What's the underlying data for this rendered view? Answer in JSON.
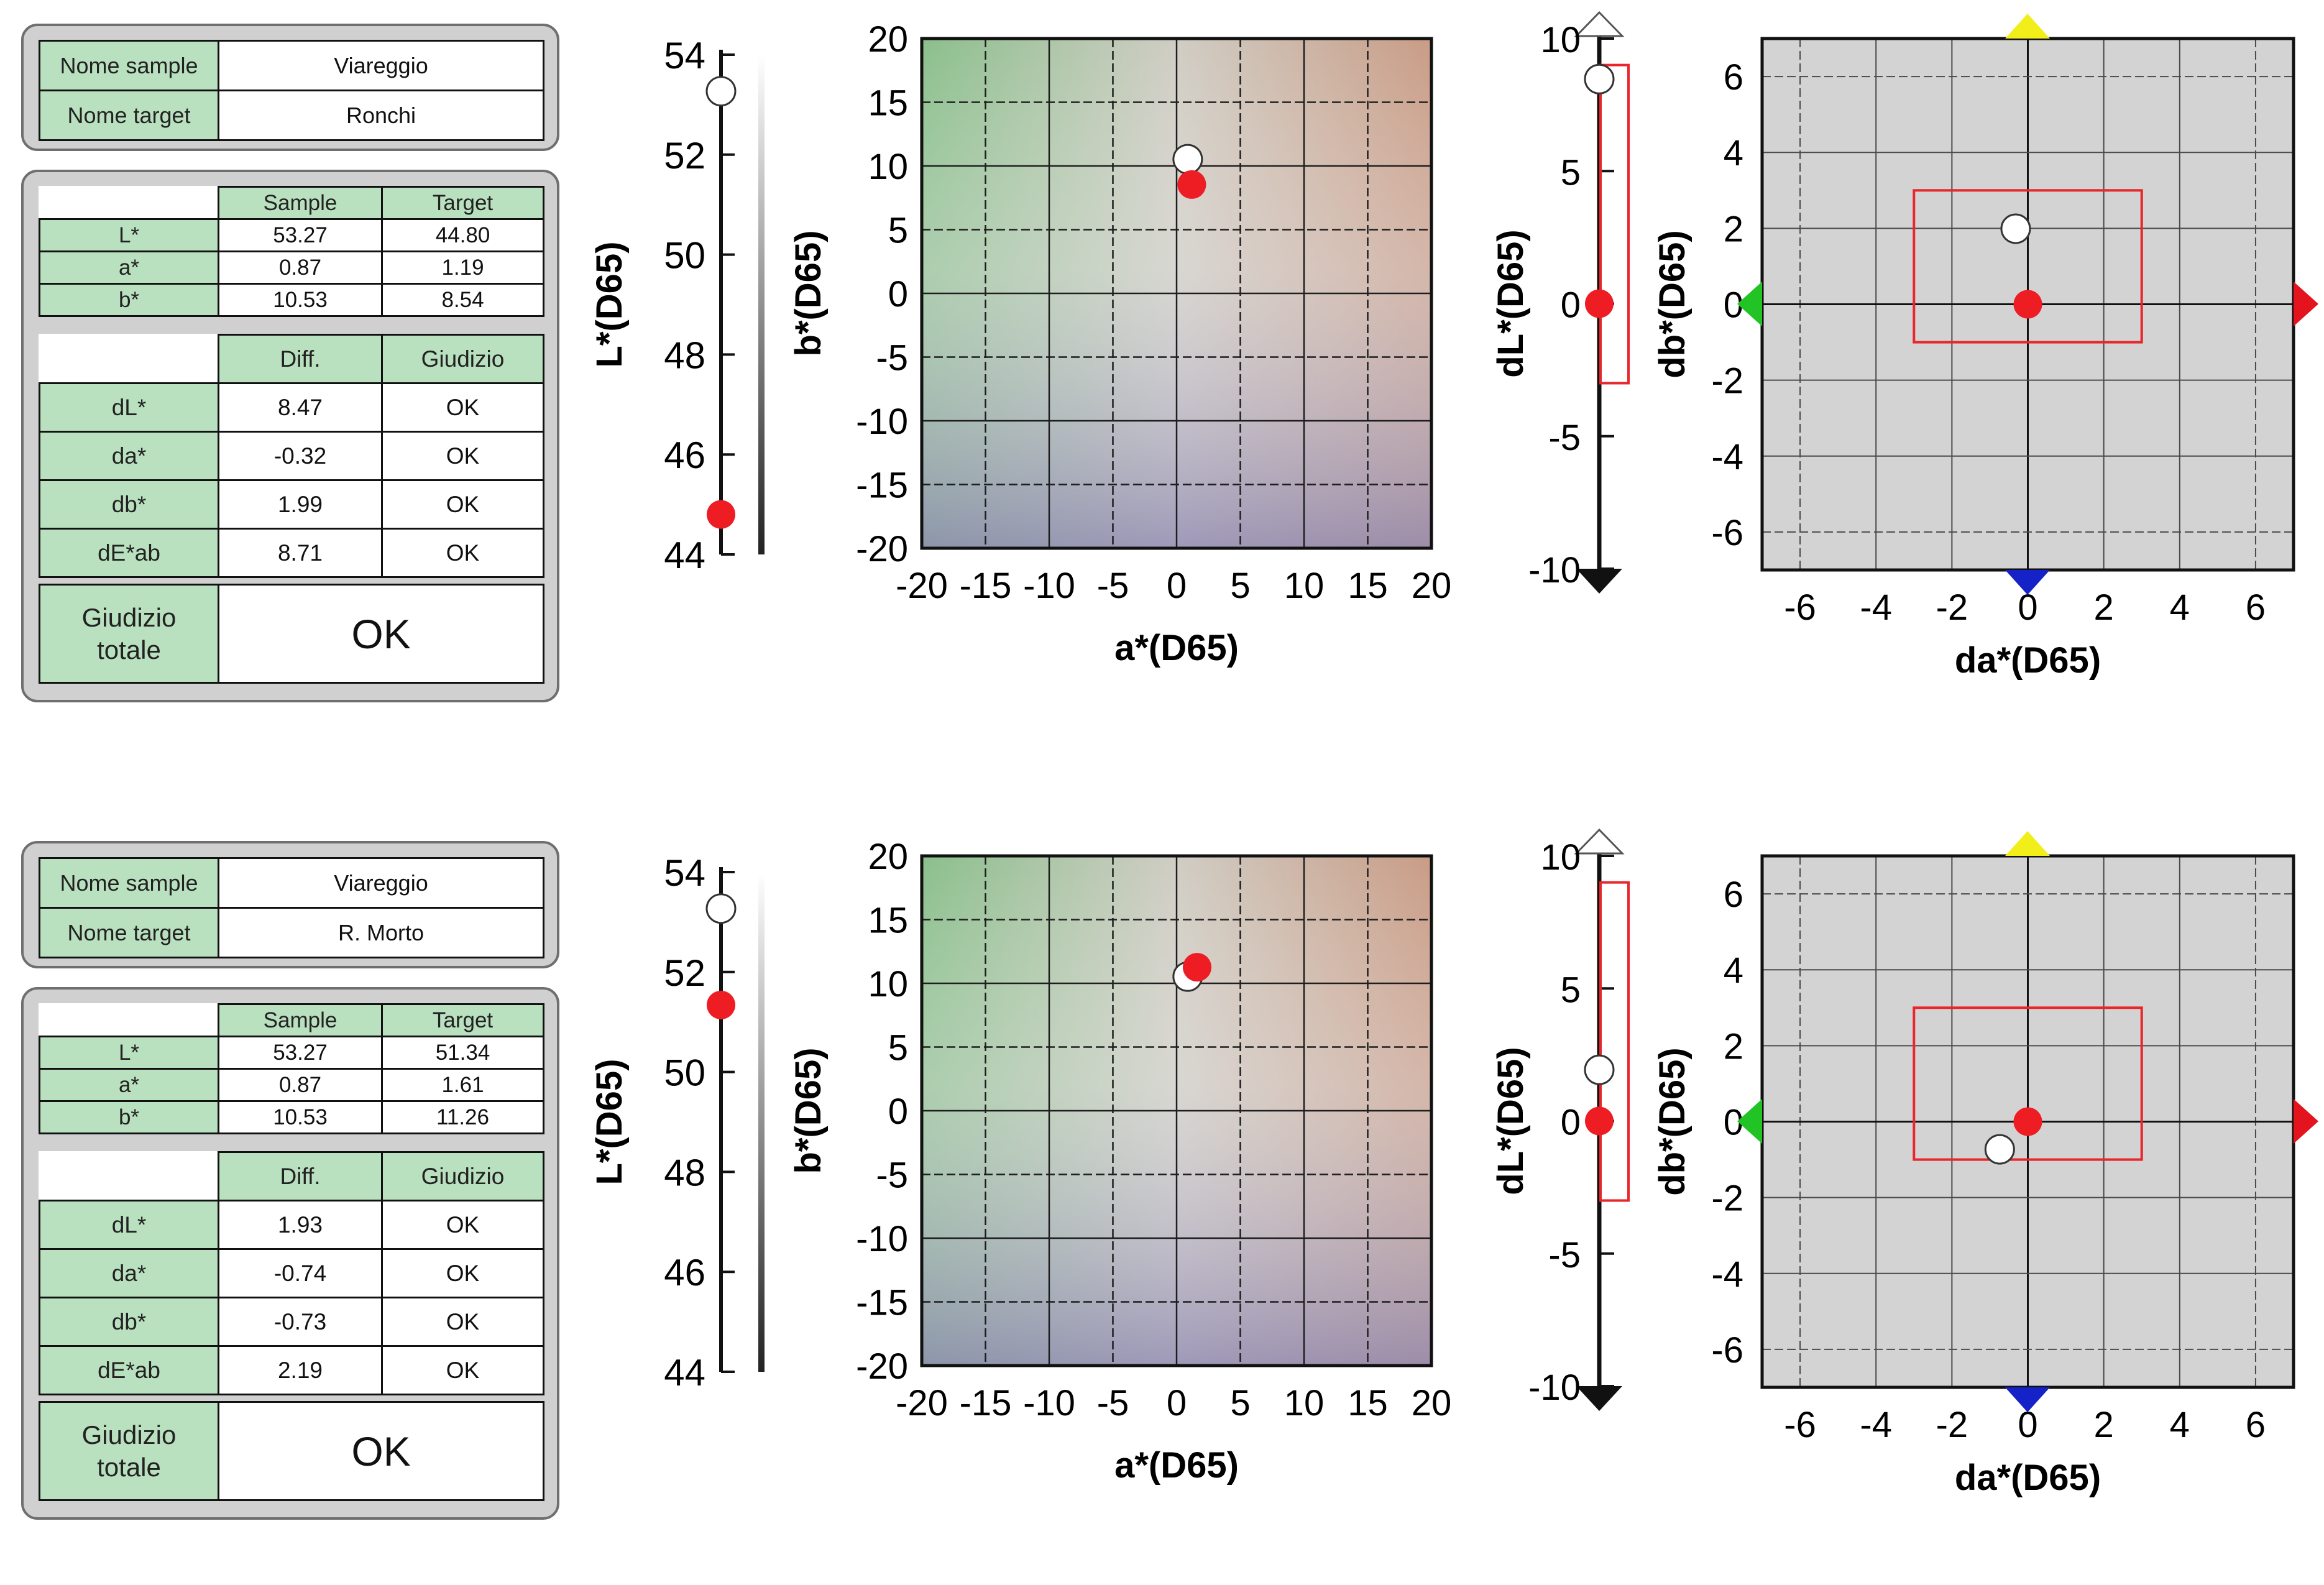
{
  "labels": {
    "name_sample": "Nome sample",
    "name_target": "Nome target",
    "col_sample": "Sample",
    "col_target": "Target",
    "L": "L*",
    "a": "a*",
    "b": "b*",
    "col_diff": "Diff.",
    "col_judgement": "Giudizio",
    "dL": "dL*",
    "da": "da*",
    "db": "db*",
    "dE": "dE*ab",
    "total_line1": "Giudizio",
    "total_line2": "totale"
  },
  "comparisons": [
    {
      "sample_name": "Viareggio",
      "target_name": "Ronchi",
      "sample": {
        "L": "53.27",
        "a": "0.87",
        "b": "10.53"
      },
      "target": {
        "L": "44.80",
        "a": "1.19",
        "b": "8.54"
      },
      "diff": {
        "dL": "8.47",
        "da": "-0.32",
        "db": "1.99",
        "dE": "8.71"
      },
      "judgement": {
        "dL": "OK",
        "da": "OK",
        "db": "OK",
        "dE": "OK"
      },
      "total": "OK"
    },
    {
      "sample_name": "Viareggio",
      "target_name": "R. Morto",
      "sample": {
        "L": "53.27",
        "a": "0.87",
        "b": "10.53"
      },
      "target": {
        "L": "51.34",
        "a": "1.61",
        "b": "11.26"
      },
      "diff": {
        "dL": "1.93",
        "da": "-0.74",
        "db": "-0.73",
        "dE": "2.19"
      },
      "judgement": {
        "dL": "OK",
        "da": "OK",
        "db": "OK",
        "dE": "OK"
      },
      "total": "OK"
    }
  ],
  "chart_data": [
    {
      "type": "scatter",
      "title": "",
      "xlabel": "",
      "ylabel": "L*(D65)",
      "ylim": [
        44,
        54
      ],
      "yticks": [
        44,
        46,
        48,
        50,
        52,
        54
      ],
      "series": [
        {
          "name": "Sample",
          "values": [
            53.27
          ]
        },
        {
          "name": "Target",
          "values": [
            44.8,
            51.34
          ]
        }
      ]
    },
    {
      "type": "scatter",
      "title": "",
      "xlabel": "a*(D65)",
      "ylabel": "b*(D65)",
      "xlim": [
        -20,
        20
      ],
      "ylim": [
        -20,
        20
      ],
      "xticks": [
        -20,
        -15,
        -10,
        -5,
        0,
        5,
        10,
        15,
        20
      ],
      "yticks": [
        -20,
        -15,
        -10,
        -5,
        0,
        5,
        10,
        15,
        20
      ],
      "series": [
        {
          "name": "Sample",
          "points": [
            [
              0.87,
              10.53
            ]
          ]
        },
        {
          "name": "Target",
          "points": [
            [
              1.19,
              8.54
            ],
            [
              1.61,
              11.26
            ]
          ]
        }
      ]
    },
    {
      "type": "scatter",
      "title": "",
      "xlabel": "",
      "ylabel": "dL*(D65)",
      "ylim": [
        -10,
        10
      ],
      "yticks": [
        -10,
        -5,
        0,
        5,
        10
      ],
      "tolerance": [
        -3,
        9
      ],
      "series": [
        {
          "name": "Sample",
          "values": [
            8.47,
            1.93
          ]
        },
        {
          "name": "Target",
          "values": [
            0,
            0
          ]
        }
      ]
    },
    {
      "type": "scatter",
      "title": "",
      "xlabel": "da*(D65)",
      "ylabel": "db*(D65)",
      "xlim": [
        -7,
        7
      ],
      "ylim": [
        -7,
        7
      ],
      "xticks": [
        -6,
        -4,
        -2,
        0,
        2,
        4,
        6
      ],
      "yticks": [
        -6,
        -4,
        -2,
        0,
        2,
        4,
        6
      ],
      "tolerance_box": {
        "da": [
          -3,
          3
        ],
        "db": [
          -1,
          3
        ]
      },
      "series": [
        {
          "name": "Sample",
          "points": [
            [
              -0.32,
              1.99
            ],
            [
              -0.74,
              -0.73
            ]
          ]
        },
        {
          "name": "Target",
          "points": [
            [
              0,
              0
            ],
            [
              0,
              0
            ]
          ]
        }
      ]
    }
  ],
  "colors": {
    "sample_marker": "#ffffff",
    "target_marker": "#ee1c23",
    "tolerance": "#e8262b",
    "panel_bg": "#d0d0d0",
    "header_bg": "#b9e0bf",
    "plot_bg": "#d3d3d3",
    "yellow_arrow": "#f2ee1a",
    "blue_arrow": "#1522c7",
    "green_arrow": "#22c425",
    "red_arrow": "#e3141d"
  }
}
